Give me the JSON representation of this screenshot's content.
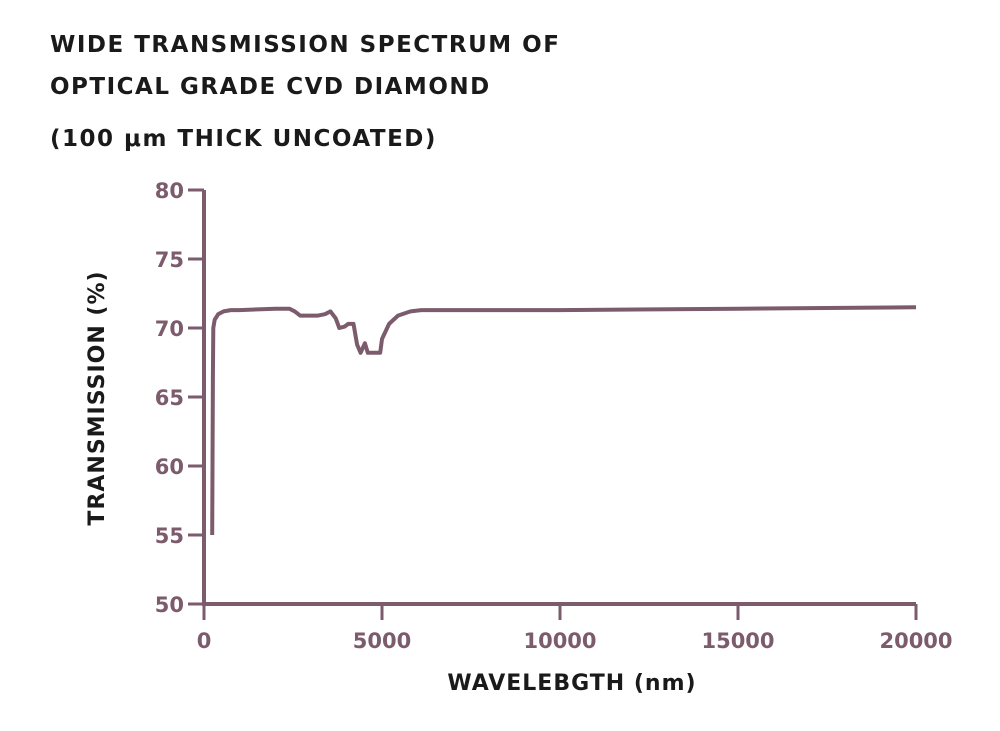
{
  "chart_data": {
    "type": "line",
    "title": [
      "WIDE TRANSMISSION SPECTRUM OF",
      "OPTICAL GRADE CVD DIAMOND"
    ],
    "subtitle": "(100 μm  THICK UNCOATED)",
    "xlabel": "WAVELEBGTH (nm)",
    "ylabel": "TRANSMISSION (%)",
    "xlim": [
      0,
      20000
    ],
    "ylim": [
      50,
      80
    ],
    "xticks": [
      0,
      5000,
      10000,
      15000,
      20000
    ],
    "yticks": [
      50,
      55,
      60,
      65,
      70,
      75,
      80
    ],
    "grid": false,
    "color": "#7b5b6c",
    "series": [
      {
        "x": [
          230,
          250,
          260,
          300,
          400,
          550,
          750,
          1000,
          1500,
          2000,
          2400,
          2550,
          2700,
          3000,
          3200,
          3400,
          3550,
          3700,
          3800,
          3950,
          4050,
          4200,
          4300,
          4400,
          4520,
          4600,
          4700,
          4800,
          4950,
          5000,
          5200,
          5450,
          5800,
          6100,
          10000,
          15000,
          20000
        ],
        "y": [
          55,
          66.5,
          70,
          70.6,
          71,
          71.2,
          71.3,
          71.3,
          71.35,
          71.4,
          71.4,
          71.2,
          70.9,
          70.9,
          70.9,
          71,
          71.2,
          70.7,
          70.0,
          70.1,
          70.3,
          70.3,
          68.8,
          68.2,
          68.9,
          68.2,
          68.2,
          68.2,
          68.2,
          69.2,
          70.3,
          70.9,
          71.2,
          71.3,
          71.3,
          71.4,
          71.5
        ]
      }
    ]
  }
}
